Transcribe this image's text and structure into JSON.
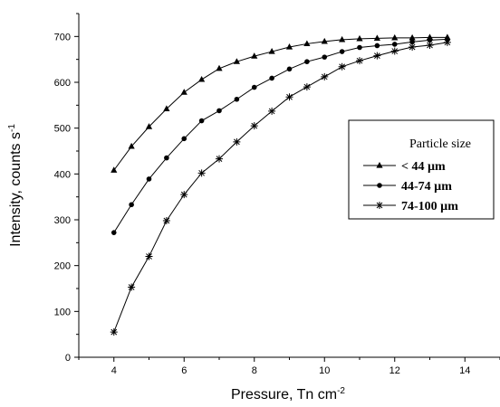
{
  "chart_data": {
    "type": "line",
    "title": "",
    "xlabel": "Pressure, Tn cm",
    "xlabel_sup": "-2",
    "ylabel": "Intensity, counts s",
    "ylabel_sup": "-1",
    "xlim": [
      3,
      15
    ],
    "ylim": [
      0,
      750
    ],
    "xticks": [
      4,
      6,
      8,
      10,
      12,
      14
    ],
    "yticks": [
      0,
      100,
      200,
      300,
      400,
      500,
      600,
      700
    ],
    "grid": false,
    "legend": {
      "title": "Particle size",
      "placement": "right"
    },
    "x": [
      4,
      4.5,
      5,
      5.5,
      6,
      6.5,
      7,
      7.5,
      8,
      8.5,
      9,
      9.5,
      10,
      10.5,
      11,
      11.5,
      12,
      12.5,
      13,
      13.5
    ],
    "series": [
      {
        "name": "< 44 µm",
        "marker": "triangle",
        "values": [
          408,
          460,
          503,
          542,
          578,
          606,
          630,
          645,
          657,
          667,
          677,
          684,
          689,
          693,
          695,
          696,
          697,
          697,
          698,
          698
        ]
      },
      {
        "name": "44-74 µm",
        "marker": "circle",
        "values": [
          272,
          333,
          389,
          435,
          477,
          516,
          538,
          563,
          589,
          609,
          629,
          645,
          655,
          667,
          676,
          680,
          683,
          688,
          692,
          694
        ]
      },
      {
        "name": "74-100 µm",
        "marker": "asterisk",
        "values": [
          55,
          153,
          220,
          298,
          355,
          402,
          433,
          470,
          505,
          537,
          568,
          590,
          612,
          634,
          647,
          658,
          668,
          677,
          681,
          687
        ]
      }
    ]
  }
}
